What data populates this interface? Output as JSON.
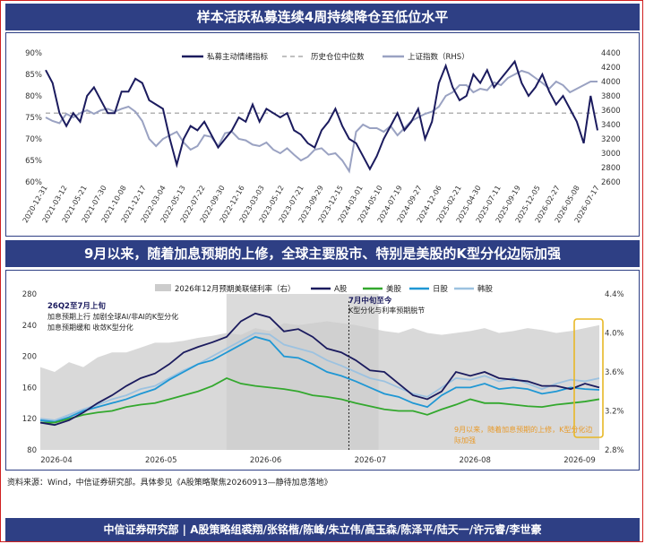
{
  "banner1": "样本活跃私募连续4周持续降仓至低位水平",
  "banner2": "9月以来，随着加息预期的上修，全球主要股市、特别是美股的K型分化边际加强",
  "source": "资料来源：Wind，中信证券研究部。具体参见《A股策略聚焦20260913—静待加息落地》",
  "footer": "中信证券研究部 | A股策略组裘翔/张铭楷/陈峰/朱立伟/高玉森/陈泽平/陆天一/许元睿/李世豪",
  "colors": {
    "navy": "#1b1b5e",
    "gray": "#9aa2c2",
    "dash": "#9a9a9a",
    "green": "#33a82e",
    "sky": "#1f97d4",
    "lightblue": "#9cc2e0",
    "fill": "#cccccc",
    "orange": "#e89a2a",
    "banner": "#2e3f84"
  },
  "chart_data": [
    {
      "type": "line",
      "x_ticks": [
        "2020-12-31",
        "2021-03-12",
        "2021-05-21",
        "2021-07-30",
        "2021-10-08",
        "2021-12-17",
        "2022-03-04",
        "2022-05-13",
        "2022-07-22",
        "2022-09-30",
        "2022-12-16",
        "2023-03-03",
        "2023-05-12",
        "2023-07-21",
        "2023-09-29",
        "2023-12-15",
        "2024-03-01",
        "2024-05-10",
        "2024-07-19",
        "2024-09-27",
        "2024-12-06",
        "2025-02-21",
        "2025-04-30",
        "2025-07-11",
        "2025-09-19",
        "2025-12-05",
        "2026-02-27",
        "2026-05-08",
        "2026-07-17"
      ],
      "y_left": {
        "range": [
          60,
          90
        ],
        "ticks": [
          "60%",
          "65%",
          "70%",
          "75%",
          "80%",
          "85%",
          "90%"
        ]
      },
      "y_right": {
        "range": [
          2600,
          4400
        ],
        "ticks": [
          "2600",
          "2800",
          "3000",
          "3200",
          "3400",
          "3600",
          "3800",
          "4000",
          "4200",
          "4400"
        ]
      },
      "median": 76,
      "series": [
        {
          "name": "私募主动情绪指标",
          "axis": "left",
          "values": [
            86,
            83,
            76,
            73,
            76,
            74,
            80,
            82,
            79,
            76,
            76,
            81,
            81,
            84,
            83,
            79,
            78,
            77,
            70,
            64,
            70,
            73,
            72,
            74,
            71,
            68,
            70,
            72,
            75,
            74,
            78,
            74,
            77,
            76,
            75,
            76,
            72,
            71,
            69,
            68,
            72,
            74,
            77,
            73,
            70,
            69,
            66,
            63,
            66,
            70,
            73,
            76,
            72,
            74,
            77,
            70,
            74,
            83,
            87,
            82,
            79,
            80,
            85,
            83,
            86,
            82,
            84,
            86,
            88,
            83,
            80,
            82,
            85,
            81,
            78,
            80,
            77,
            74,
            69,
            80,
            72
          ]
        },
        {
          "name": "历史仓位中位数",
          "axis": "left",
          "values": [
            76,
            76
          ]
        },
        {
          "name": "上证指数（RHS）",
          "axis": "right",
          "values": [
            3500,
            3450,
            3420,
            3550,
            3500,
            3560,
            3600,
            3550,
            3600,
            3620,
            3580,
            3620,
            3650,
            3580,
            3450,
            3200,
            3100,
            3200,
            3250,
            3300,
            3150,
            3050,
            3100,
            3250,
            3230,
            3100,
            3280,
            3300,
            3200,
            3180,
            3120,
            3100,
            3150,
            3050,
            3000,
            3070,
            2980,
            2900,
            2950,
            3050,
            3070,
            2980,
            3000,
            2900,
            2750,
            3300,
            3400,
            3350,
            3350,
            3300,
            3380,
            3250,
            3350,
            3450,
            3500,
            3550,
            3580,
            3650,
            3800,
            3850,
            3950,
            3950,
            3850,
            3900,
            3880,
            3990,
            3950,
            4050,
            4100,
            4150,
            4120,
            4050,
            3980,
            3900,
            4000,
            3950,
            3850,
            3900,
            3950,
            4000,
            4000
          ]
        }
      ]
    },
    {
      "type": "line",
      "x_ticks": [
        "2026-04",
        "2026-05",
        "2026-06",
        "2026-07",
        "2026-08",
        "2026-09"
      ],
      "y_left": {
        "range": [
          80,
          280
        ],
        "ticks": [
          "80",
          "120",
          "160",
          "200",
          "240",
          "280"
        ]
      },
      "y_right": {
        "range": [
          2.8,
          4.4
        ],
        "ticks": [
          "2.8%",
          "3.2%",
          "3.6%",
          "4.0%",
          "4.4%"
        ]
      },
      "series": [
        {
          "name": "2026年12月预期美联储利率（右）",
          "type": "area",
          "axis": "right",
          "values": [
            3.65,
            3.6,
            3.7,
            3.65,
            3.75,
            3.8,
            3.8,
            3.85,
            3.9,
            3.9,
            3.92,
            3.95,
            3.97,
            4.0,
            3.98,
            4.05,
            4.02,
            4.1,
            4.08,
            4.1,
            4.12,
            4.1,
            4.08,
            4.05,
            4.02,
            4.0,
            4.05,
            4.0,
            3.98,
            4.0,
            4.02,
            4.05,
            4.0,
            4.02,
            4.05,
            4.03,
            4.0,
            4.02,
            4.05,
            4.08
          ]
        },
        {
          "name": "A股",
          "axis": "left",
          "values": [
            115,
            112,
            118,
            128,
            140,
            150,
            162,
            172,
            178,
            190,
            205,
            212,
            218,
            225,
            245,
            255,
            250,
            232,
            235,
            225,
            210,
            205,
            195,
            182,
            180,
            165,
            150,
            145,
            155,
            180,
            175,
            180,
            172,
            170,
            168,
            162,
            162,
            158,
            165,
            160
          ]
        },
        {
          "name": "美股",
          "axis": "left",
          "values": [
            115,
            115,
            120,
            125,
            128,
            130,
            135,
            138,
            140,
            145,
            150,
            155,
            162,
            172,
            165,
            162,
            160,
            158,
            155,
            150,
            148,
            145,
            140,
            136,
            132,
            130,
            130,
            125,
            132,
            138,
            145,
            140,
            140,
            138,
            136,
            135,
            138,
            140,
            142,
            145
          ]
        },
        {
          "name": "日股",
          "axis": "left",
          "values": [
            118,
            116,
            122,
            130,
            135,
            140,
            145,
            152,
            158,
            170,
            180,
            190,
            195,
            205,
            215,
            225,
            220,
            200,
            198,
            190,
            180,
            175,
            168,
            160,
            152,
            148,
            140,
            135,
            150,
            160,
            160,
            165,
            158,
            160,
            158,
            152,
            155,
            160,
            158,
            157
          ]
        },
        {
          "name": "韩股",
          "axis": "left",
          "values": [
            120,
            118,
            125,
            132,
            138,
            145,
            150,
            158,
            162,
            172,
            182,
            190,
            200,
            210,
            220,
            230,
            228,
            215,
            210,
            205,
            195,
            188,
            180,
            172,
            168,
            160,
            152,
            148,
            160,
            172,
            170,
            175,
            168,
            172,
            165,
            158,
            165,
            170,
            168,
            172
          ]
        }
      ],
      "shaded_region": "2026-06-05 – 2026-07-18",
      "annotations": [
        {
          "title": "26Q2至7月上旬",
          "lines": [
            "加息预期上行 加剧全球AI/非AI的K型分化",
            "加息预期缓和 收敛K型分化"
          ]
        },
        {
          "title": "7月中旬至今",
          "lines": [
            "K型分化与利率预期脱节"
          ]
        },
        {
          "title": "",
          "lines": [
            "9月以来，随着加息预期的上修，K型分化边",
            "际加强"
          ]
        }
      ]
    }
  ]
}
